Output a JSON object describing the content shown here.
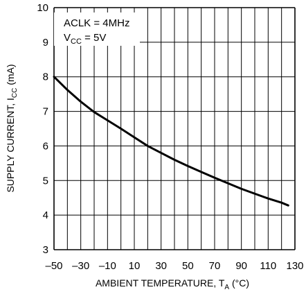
{
  "chart_data": {
    "type": "line",
    "xlabel": {
      "main": "AMBIENT TEMPERATURE, T",
      "sub": "A",
      "suffix": " (°C)"
    },
    "ylabel": {
      "main": "SUPPLY CURRENT, I",
      "sub": "CC",
      "suffix": " (mA)"
    },
    "xlim": [
      -50,
      130
    ],
    "ylim": [
      3,
      10
    ],
    "x_major_step": 10,
    "x_ticks": [
      "–50",
      "–30",
      "–10",
      "10",
      "30",
      "50",
      "70",
      "90",
      "110",
      "130"
    ],
    "y_ticks": [
      "3",
      "4",
      "5",
      "6",
      "7",
      "8",
      "9",
      "10"
    ],
    "grid": true,
    "annotation": {
      "line1": "ACLK = 4MHz",
      "line2_main": "V",
      "line2_sub": "CC",
      "line2_suffix": " = 5V"
    },
    "series": [
      {
        "x": [
          -50,
          -40,
          -30,
          -20,
          -10,
          0,
          10,
          20,
          30,
          40,
          50,
          60,
          70,
          80,
          90,
          100,
          110,
          120,
          125
        ],
        "y": [
          8.0,
          7.62,
          7.28,
          6.98,
          6.74,
          6.5,
          6.25,
          6.0,
          5.8,
          5.6,
          5.42,
          5.25,
          5.08,
          4.92,
          4.76,
          4.62,
          4.48,
          4.36,
          4.28
        ]
      }
    ],
    "colors": {
      "line": "#000000",
      "grid": "#000000"
    }
  }
}
